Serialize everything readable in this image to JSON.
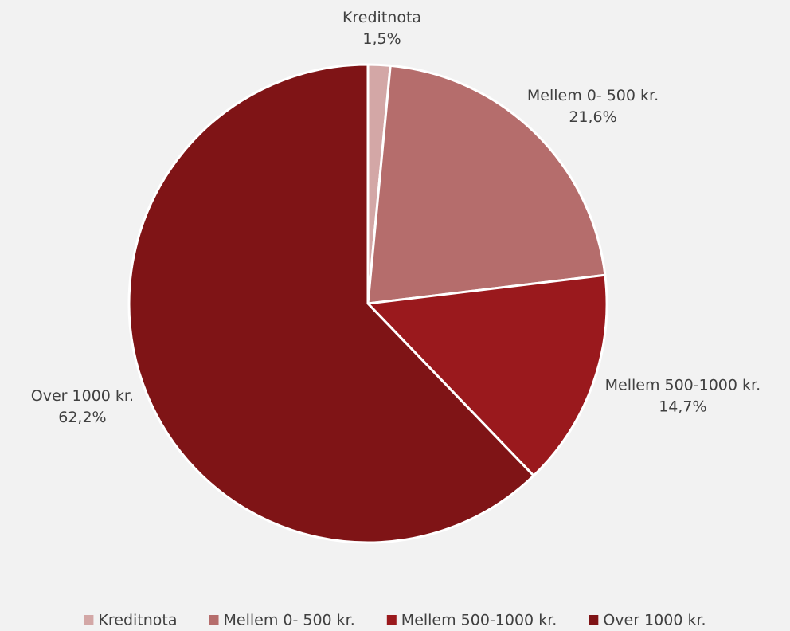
{
  "chart_data": {
    "type": "pie",
    "categories": [
      "Kreditnota",
      "Mellem 0- 500 kr.",
      "Mellem 500-1000 kr.",
      "Over 1000 kr."
    ],
    "values": [
      1.5,
      21.6,
      14.7,
      62.2
    ],
    "value_labels": [
      "1,5%",
      "21,6%",
      "14,7%",
      "62,2%"
    ],
    "colors": [
      "#d3a7a6",
      "#b56d6c",
      "#9a191d",
      "#7f1416"
    ],
    "legend": "bottom"
  }
}
